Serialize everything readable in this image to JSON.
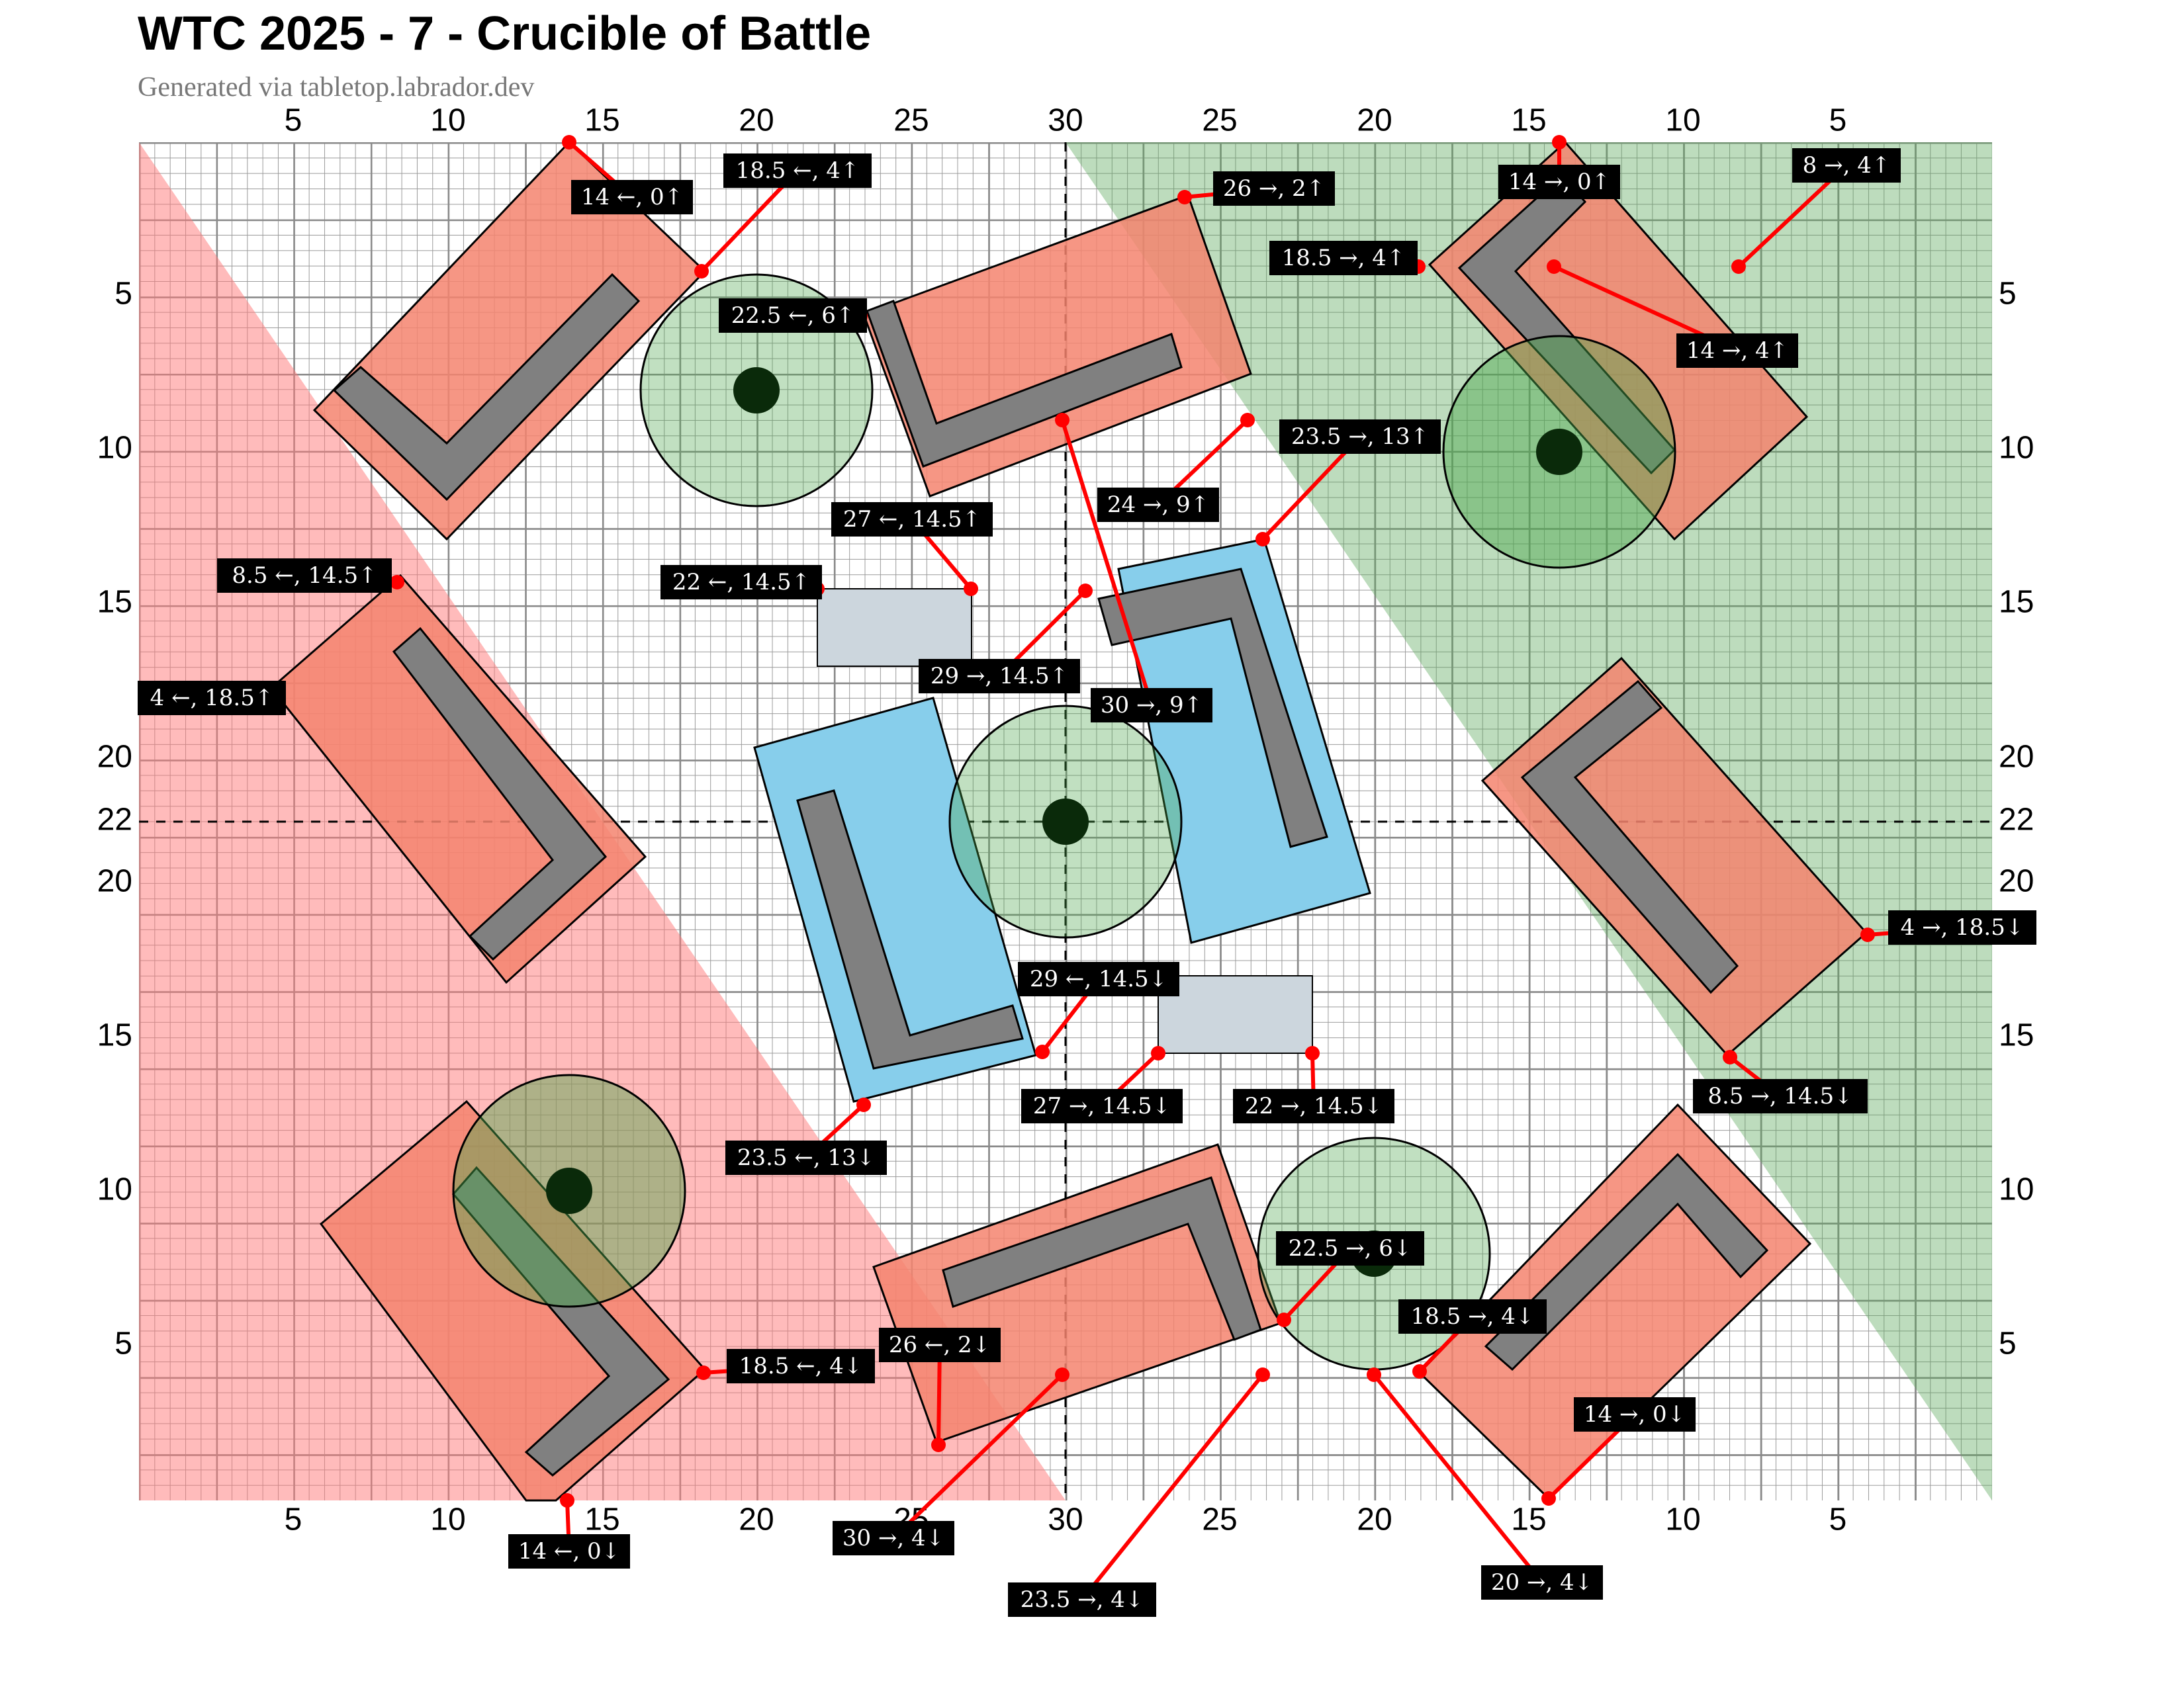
{
  "header": {
    "title": "WTC 2025 - 7 - Crucible of Battle",
    "subtitle": "Generated via tabletop.labrador.dev"
  },
  "axes": {
    "top": [
      "5",
      "10",
      "15",
      "20",
      "25",
      "30",
      "25",
      "20",
      "15",
      "10",
      "5"
    ],
    "bottom": [
      "5",
      "10",
      "15",
      "20",
      "25",
      "30",
      "25",
      "20",
      "15",
      "10",
      "5"
    ],
    "left": [
      "5",
      "10",
      "15",
      "20",
      "22",
      "20",
      "15",
      "10",
      "5"
    ],
    "right": [
      "5",
      "10",
      "15",
      "20",
      "22",
      "20",
      "15",
      "10",
      "5"
    ]
  },
  "colors": {
    "red_zone": "#ff9999",
    "green_zone": "#7fbf7f",
    "ruin": "#f4846f",
    "ruin_wall": "#808080",
    "blue_ruin": "#87ceeb",
    "crate": "#ccd6dd",
    "objective_ring": "#a8d5a2",
    "measure_line": "#ff0000"
  },
  "terrain": {
    "red_ruins": 8,
    "blue_ruins": 2,
    "crates": 2,
    "objectives": 6
  },
  "measurements": [
    "14 ←, 0↑",
    "18.5 ←, 4↑",
    "26 →, 2↑",
    "14 →, 0↑",
    "8 →, 4↑",
    "18.5 →, 4↑",
    "22.5 ←, 6↑",
    "14 →, 4↑",
    "23.5 →, 13↑",
    "24 →, 9↑",
    "27 ←, 14.5↑",
    "8.5 ←, 14.5↑",
    "22 ←, 14.5↑",
    "4 ←, 18.5↑",
    "29 →, 14.5↑",
    "30 →, 9↑",
    "4 →, 18.5↓",
    "29 ←, 14.5↓",
    "8.5 →, 14.5↓",
    "27 →, 14.5↓",
    "22 →, 14.5↓",
    "23.5 ←, 13↓",
    "22.5 →, 6↓",
    "18.5 →, 4↓",
    "26 ←, 2↓",
    "18.5 ←, 4↓",
    "14 →, 0↓",
    "30 →, 4↓",
    "20 →, 4↓",
    "23.5 →, 4↓",
    "14 ←, 0↓"
  ]
}
